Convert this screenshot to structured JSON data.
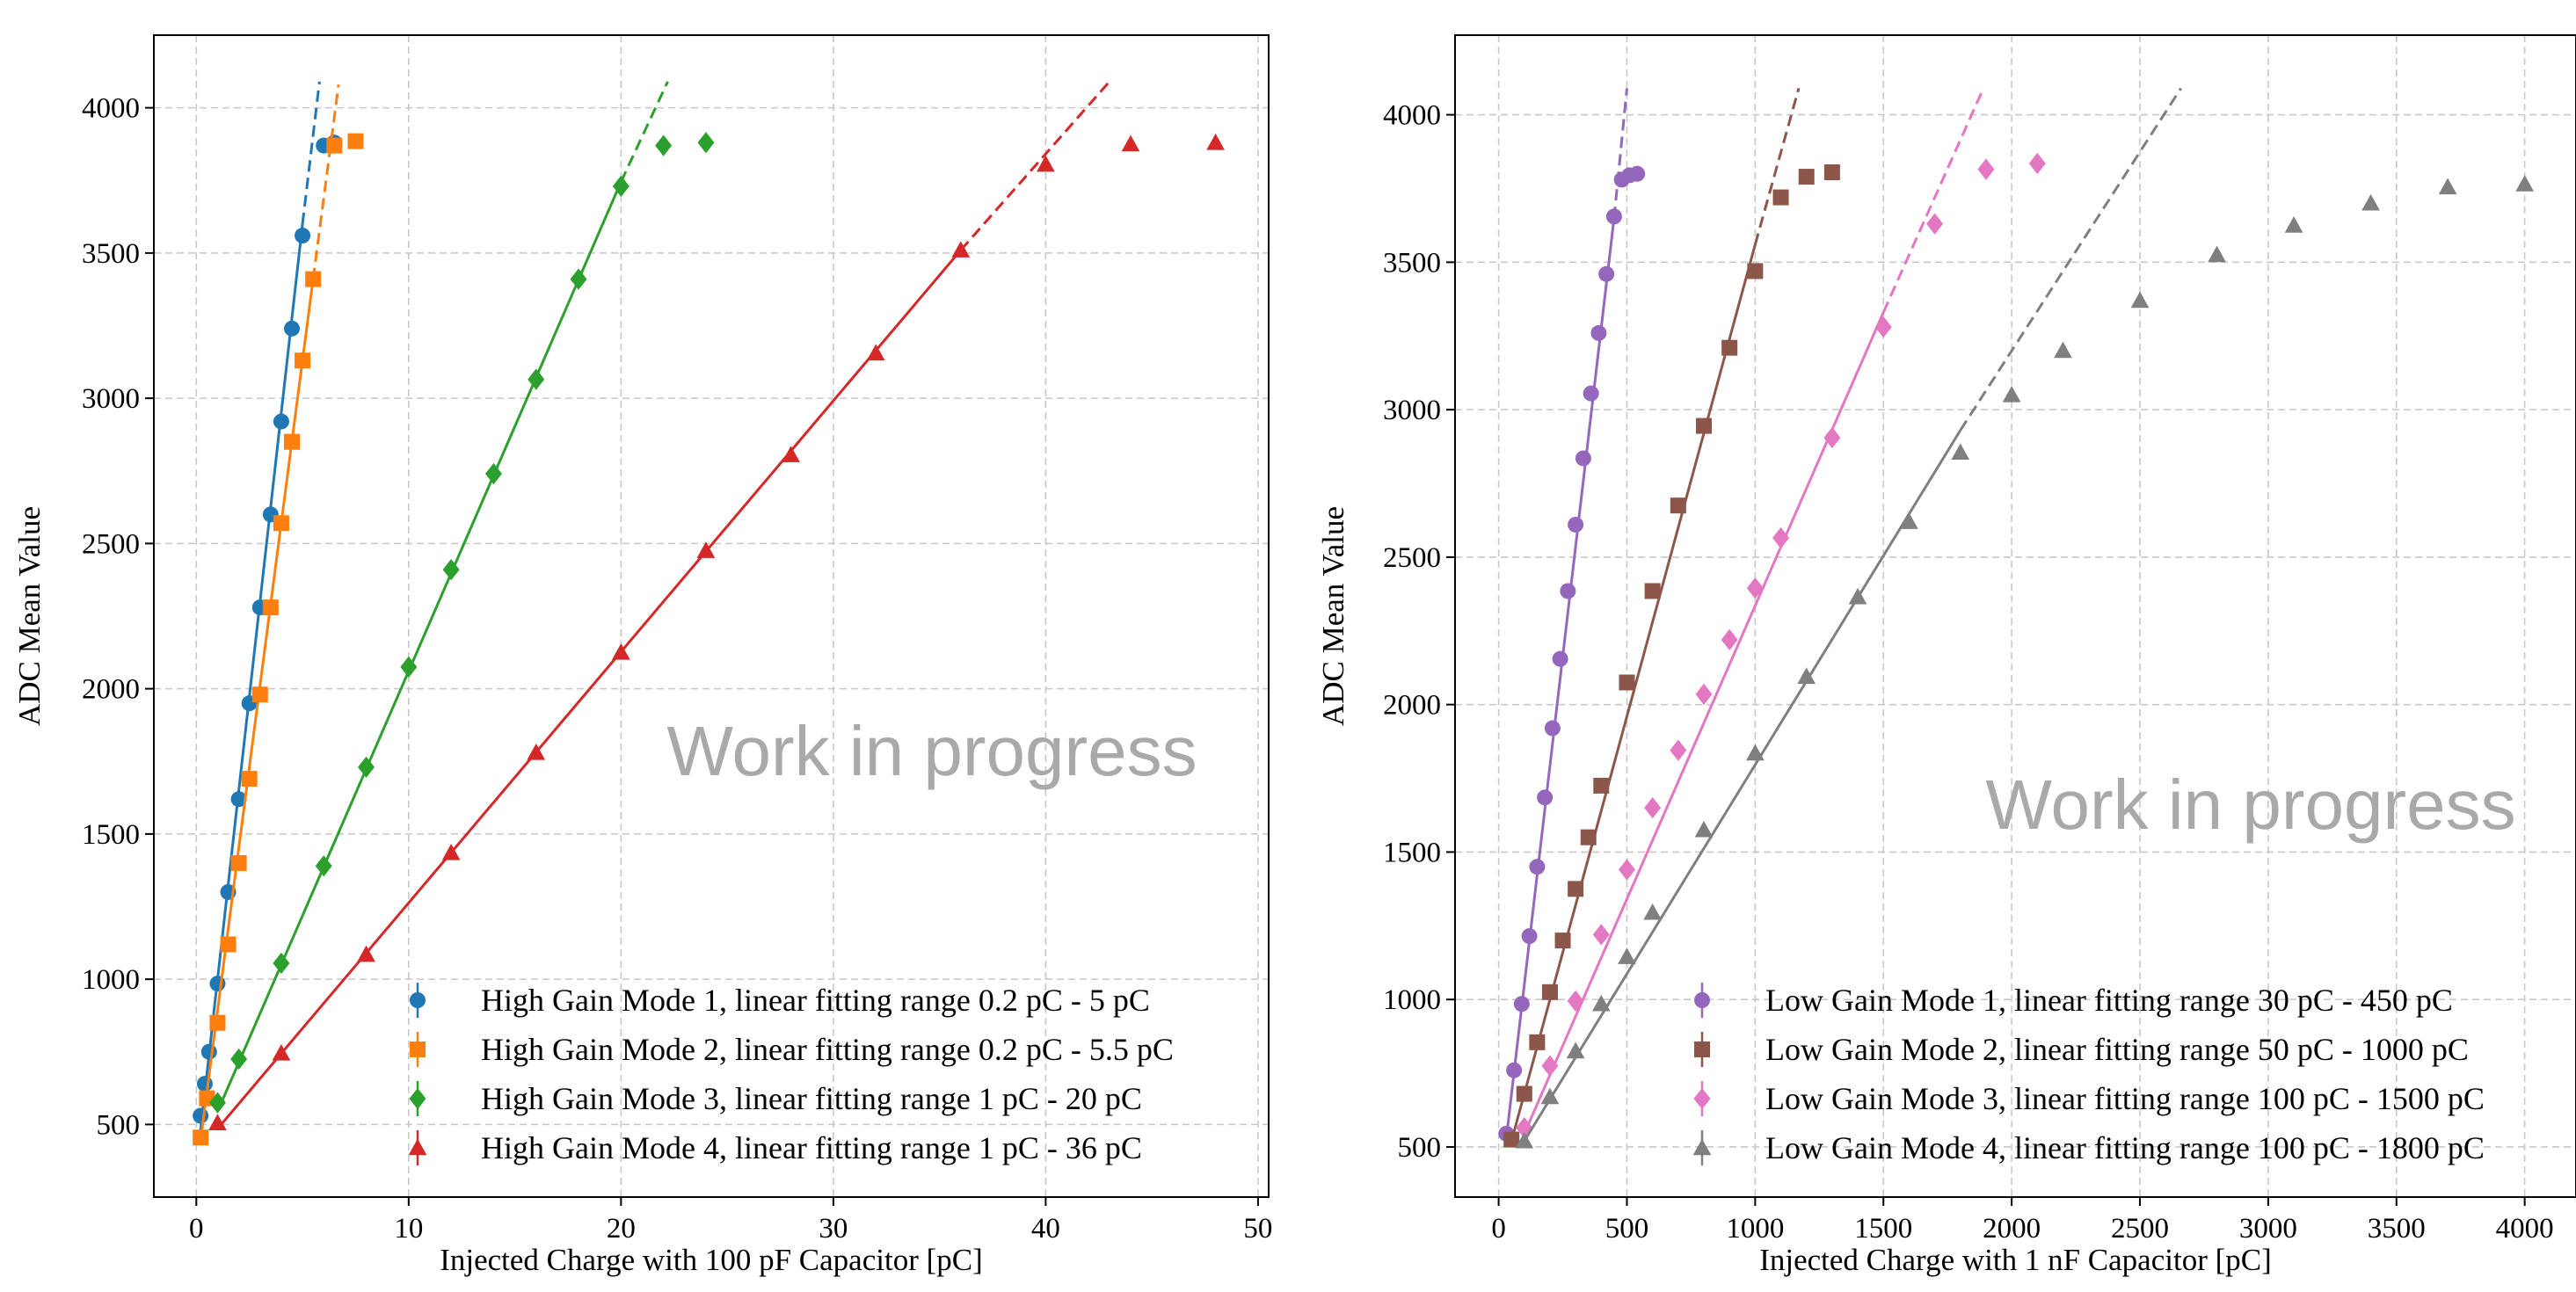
{
  "chart_data": [
    {
      "type": "scatter",
      "xlabel": "Injected Charge with 100 pF Capacitor [pC]",
      "ylabel": "ADC Mean Value",
      "xlim": [
        -2,
        50.5
      ],
      "ylim": [
        250,
        4250
      ],
      "xticks": [
        0,
        10,
        20,
        30,
        40,
        50
      ],
      "yticks": [
        500,
        1000,
        1500,
        2000,
        2500,
        3000,
        3500,
        4000
      ],
      "grid": true,
      "legend_position": "bottom-right",
      "watermark": "Work in progress",
      "series": [
        {
          "name": "High Gain Mode 1, linear fitting range 0.2 pC - 5 pC",
          "color": "#1f77b4",
          "marker": "circle",
          "x": [
            0.2,
            0.4,
            0.6,
            1.0,
            1.5,
            2.0,
            2.5,
            3.0,
            3.5,
            4.0,
            4.5,
            5.0,
            6.0,
            6.5
          ],
          "y": [
            530,
            640,
            750,
            985,
            1300,
            1620,
            1950,
            2280,
            2600,
            2920,
            3240,
            3560,
            3870,
            3880
          ],
          "fit": {
            "x_solid": [
              0.2,
              5.0
            ],
            "y_solid": [
              480,
              3600
            ],
            "x_dashed": [
              5.0,
              5.8
            ],
            "y_dashed": [
              3600,
              4090
            ]
          }
        },
        {
          "name": "High Gain Mode 2, linear fitting range 0.2 pC - 5.5 pC",
          "color": "#ff7f0e",
          "marker": "square",
          "x": [
            0.2,
            0.5,
            1.0,
            1.5,
            2.0,
            2.5,
            3.0,
            3.5,
            4.0,
            4.5,
            5.0,
            5.5,
            6.5,
            7.5
          ],
          "y": [
            455,
            590,
            850,
            1120,
            1400,
            1690,
            1980,
            2280,
            2570,
            2850,
            3130,
            3410,
            3870,
            3885
          ],
          "fit": {
            "x_solid": [
              0.2,
              5.5
            ],
            "y_solid": [
              445,
              3410
            ],
            "x_dashed": [
              5.5,
              6.7
            ],
            "y_dashed": [
              3410,
              4080
            ]
          }
        },
        {
          "name": "High Gain Mode 3, linear fitting range 1 pC - 20 pC",
          "color": "#2ca02c",
          "marker": "diamond",
          "x": [
            1,
            2,
            4,
            6,
            8,
            10,
            12,
            14,
            16,
            18,
            20,
            22,
            24
          ],
          "y": [
            575,
            725,
            1055,
            1390,
            1730,
            2075,
            2410,
            2740,
            3065,
            3410,
            3730,
            3870,
            3880
          ],
          "fit": {
            "x_solid": [
              1,
              20
            ],
            "y_solid": [
              545,
              3745
            ],
            "x_dashed": [
              20,
              22.2
            ],
            "y_dashed": [
              3745,
              4090
            ]
          }
        },
        {
          "name": "High Gain Mode 4, linear fitting range 1 pC - 36 pC",
          "color": "#d62728",
          "marker": "triangle",
          "x": [
            1,
            4,
            8,
            12,
            16,
            20,
            24,
            28,
            32,
            36,
            40,
            44,
            48
          ],
          "y": [
            505,
            745,
            1085,
            1435,
            1780,
            2125,
            2475,
            2805,
            3155,
            3510,
            3805,
            3875,
            3880
          ],
          "fit": {
            "x_solid": [
              1,
              36
            ],
            "y_solid": [
              485,
              3510
            ],
            "x_dashed": [
              36,
              43
            ],
            "y_dashed": [
              3510,
              4090
            ]
          }
        }
      ]
    },
    {
      "type": "scatter",
      "xlabel": "Injected Charge with 1 nF Capacitor [pC]",
      "ylabel": "ADC Mean Value",
      "xlim": [
        -170,
        4200
      ],
      "ylim": [
        330,
        4270
      ],
      "xticks": [
        0,
        500,
        1000,
        1500,
        2000,
        2500,
        3000,
        3500,
        4000
      ],
      "yticks": [
        500,
        1000,
        1500,
        2000,
        2500,
        3000,
        3500,
        4000
      ],
      "grid": true,
      "legend_position": "bottom-right",
      "watermark": "Work in progress",
      "series": [
        {
          "name": "Low Gain Mode 1, linear fitting range 30 pC - 450 pC",
          "color": "#9467bd",
          "marker": "circle",
          "x": [
            30,
            60,
            90,
            120,
            150,
            180,
            210,
            240,
            270,
            300,
            330,
            360,
            390,
            420,
            450,
            480,
            510,
            540
          ],
          "y": [
            545,
            760,
            985,
            1215,
            1450,
            1685,
            1920,
            2155,
            2385,
            2610,
            2835,
            3055,
            3260,
            3460,
            3655,
            3780,
            3795,
            3800
          ],
          "fit": {
            "x_solid": [
              30,
              450
            ],
            "y_solid": [
              530,
              3650
            ],
            "x_dashed": [
              450,
              500
            ],
            "y_dashed": [
              3650,
              4090
            ]
          }
        },
        {
          "name": "Low Gain Mode 2, linear fitting range 50 pC - 1000 pC",
          "color": "#8c564b",
          "marker": "square",
          "x": [
            50,
            100,
            150,
            200,
            250,
            300,
            350,
            400,
            500,
            600,
            700,
            800,
            900,
            1000,
            1100,
            1200,
            1300
          ],
          "y": [
            525,
            680,
            855,
            1025,
            1200,
            1375,
            1550,
            1725,
            2075,
            2385,
            2675,
            2945,
            3210,
            3470,
            3720,
            3790,
            3805
          ],
          "fit": {
            "x_solid": [
              50,
              1000
            ],
            "y_solid": [
              520,
              3560
            ],
            "x_dashed": [
              1000,
              1170
            ],
            "y_dashed": [
              3560,
              4090
            ]
          }
        },
        {
          "name": "Low Gain Mode 3, linear fitting range 100 pC - 1500 pC",
          "color": "#e377c2",
          "marker": "diamond",
          "x": [
            100,
            200,
            300,
            400,
            500,
            600,
            700,
            800,
            900,
            1000,
            1100,
            1300,
            1500,
            1700,
            1900,
            2100
          ],
          "y": [
            565,
            775,
            995,
            1220,
            1440,
            1650,
            1845,
            2035,
            2220,
            2395,
            2565,
            2905,
            3280,
            3630,
            3815,
            3835
          ],
          "fit": {
            "x_solid": [
              100,
              1500
            ],
            "y_solid": [
              545,
              3330
            ],
            "x_dashed": [
              1500,
              1890
            ],
            "y_dashed": [
              3330,
              4090
            ]
          }
        },
        {
          "name": "Low Gain Mode 4, linear fitting range 100 pC - 1800 pC",
          "color": "#7f7f7f",
          "marker": "triangle",
          "x": [
            100,
            200,
            300,
            400,
            500,
            600,
            800,
            1000,
            1200,
            1400,
            1600,
            1800,
            2000,
            2200,
            2500,
            2800,
            3100,
            3400,
            3700,
            4000
          ],
          "y": [
            520,
            670,
            825,
            985,
            1145,
            1295,
            1575,
            1835,
            2095,
            2365,
            2620,
            2855,
            3050,
            3200,
            3370,
            3525,
            3625,
            3700,
            3755,
            3765
          ],
          "fit": {
            "x_solid": [
              100,
              1800
            ],
            "y_solid": [
              520,
              2930
            ],
            "x_dashed": [
              1800,
              2660
            ],
            "y_dashed": [
              2930,
              4090
            ]
          }
        }
      ]
    }
  ]
}
